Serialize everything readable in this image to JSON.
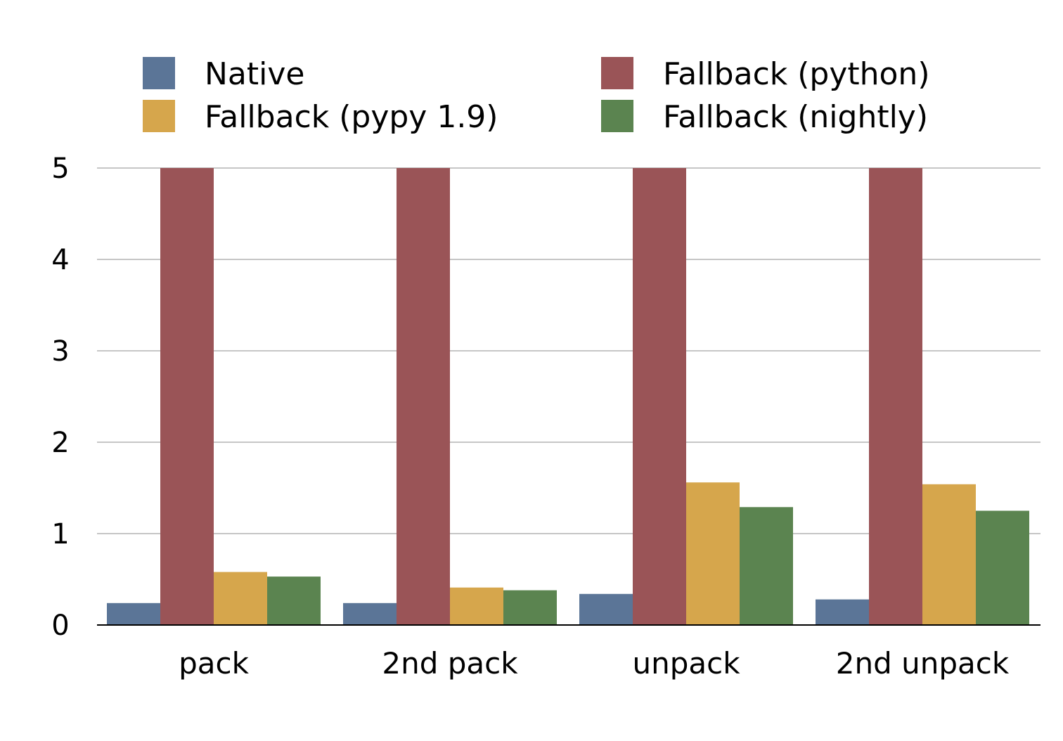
{
  "chart_data": {
    "type": "bar",
    "title": "",
    "xlabel": "",
    "ylabel": "",
    "categories": [
      "pack",
      "2nd pack",
      "unpack",
      "2nd unpack"
    ],
    "ylim": [
      0,
      5
    ],
    "yticks": [
      "0",
      "1",
      "2",
      "3",
      "4",
      "5"
    ],
    "grid": true,
    "legend_position": "top",
    "series": [
      {
        "name": "Native",
        "color": "#5b7597",
        "values": [
          0.24,
          0.24,
          0.34,
          0.28
        ]
      },
      {
        "name": "Fallback (python)",
        "color": "#9a5457",
        "values": [
          5,
          5,
          5,
          5
        ]
      },
      {
        "name": "Fallback (pypy 1.9)",
        "color": "#d6a64c",
        "values": [
          0.58,
          0.41,
          1.56,
          1.54
        ]
      },
      {
        "name": "Fallback (nightly)",
        "color": "#5b8450",
        "values": [
          0.53,
          0.38,
          1.29,
          1.25
        ]
      }
    ]
  }
}
